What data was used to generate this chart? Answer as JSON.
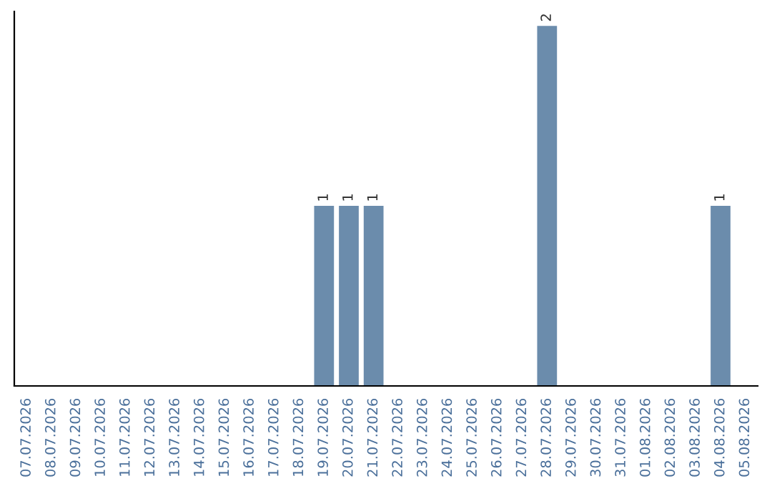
{
  "chart_data": {
    "type": "bar",
    "categories": [
      "07.07.2026",
      "08.07.2026",
      "09.07.2026",
      "10.07.2026",
      "11.07.2026",
      "12.07.2026",
      "13.07.2026",
      "14.07.2026",
      "15.07.2026",
      "16.07.2026",
      "17.07.2026",
      "18.07.2026",
      "19.07.2026",
      "20.07.2026",
      "21.07.2026",
      "22.07.2026",
      "23.07.2026",
      "24.07.2026",
      "25.07.2026",
      "26.07.2026",
      "27.07.2026",
      "28.07.2026",
      "29.07.2026",
      "30.07.2026",
      "31.07.2026",
      "01.08.2026",
      "02.08.2026",
      "03.08.2026",
      "04.08.2026",
      "05.08.2026"
    ],
    "values": [
      null,
      null,
      null,
      null,
      null,
      null,
      null,
      null,
      null,
      null,
      null,
      null,
      1,
      1,
      1,
      null,
      null,
      null,
      null,
      null,
      null,
      2,
      null,
      null,
      null,
      null,
      null,
      null,
      1,
      null
    ],
    "color": "#6b8cac",
    "data_labels": true,
    "tick_labels": "x",
    "grid": false,
    "legend": false
  }
}
